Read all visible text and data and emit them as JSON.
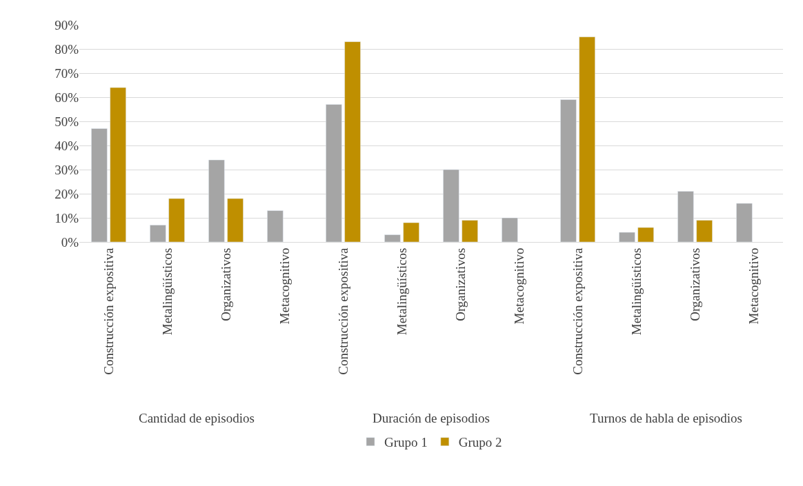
{
  "chart_data": {
    "type": "bar",
    "categories": [
      "Construcción expositiva",
      "Metalingüísticos",
      "Organizativos",
      "Metacognitivo",
      "Construcción expositiva",
      "Metalingüísticos",
      "Organizativos",
      "Metacognitivo",
      "Construcción expositiva",
      "Metalingüísticos",
      "Organizativos",
      "Metacognitivo"
    ],
    "series": [
      {
        "name": "Grupo 1",
        "color": "#a5a5a5",
        "values": [
          47,
          7,
          34,
          13,
          57,
          3,
          30,
          10,
          59,
          4,
          21,
          16
        ]
      },
      {
        "name": "Grupo 2",
        "color": "#bf8f00",
        "values": [
          64,
          18,
          18,
          null,
          83,
          8,
          9,
          null,
          85,
          6,
          9,
          null
        ]
      }
    ],
    "annotations": [
      "Cantidad de episodios",
      "Duración de episodios",
      "Turnos de habla de episodios"
    ],
    "ylim": [
      0,
      90
    ],
    "yticks": [
      {
        "value": 0,
        "label": "0%"
      },
      {
        "value": 10,
        "label": "10%"
      },
      {
        "value": 20,
        "label": "20%"
      },
      {
        "value": 30,
        "label": "30%"
      },
      {
        "value": 40,
        "label": "40%"
      },
      {
        "value": 50,
        "label": "50%"
      },
      {
        "value": 60,
        "label": "60%"
      },
      {
        "value": 70,
        "label": "70%"
      },
      {
        "value": 80,
        "label": "80%"
      },
      {
        "value": 90,
        "label": "90%"
      }
    ],
    "grid": "y",
    "legend": "bottom"
  }
}
